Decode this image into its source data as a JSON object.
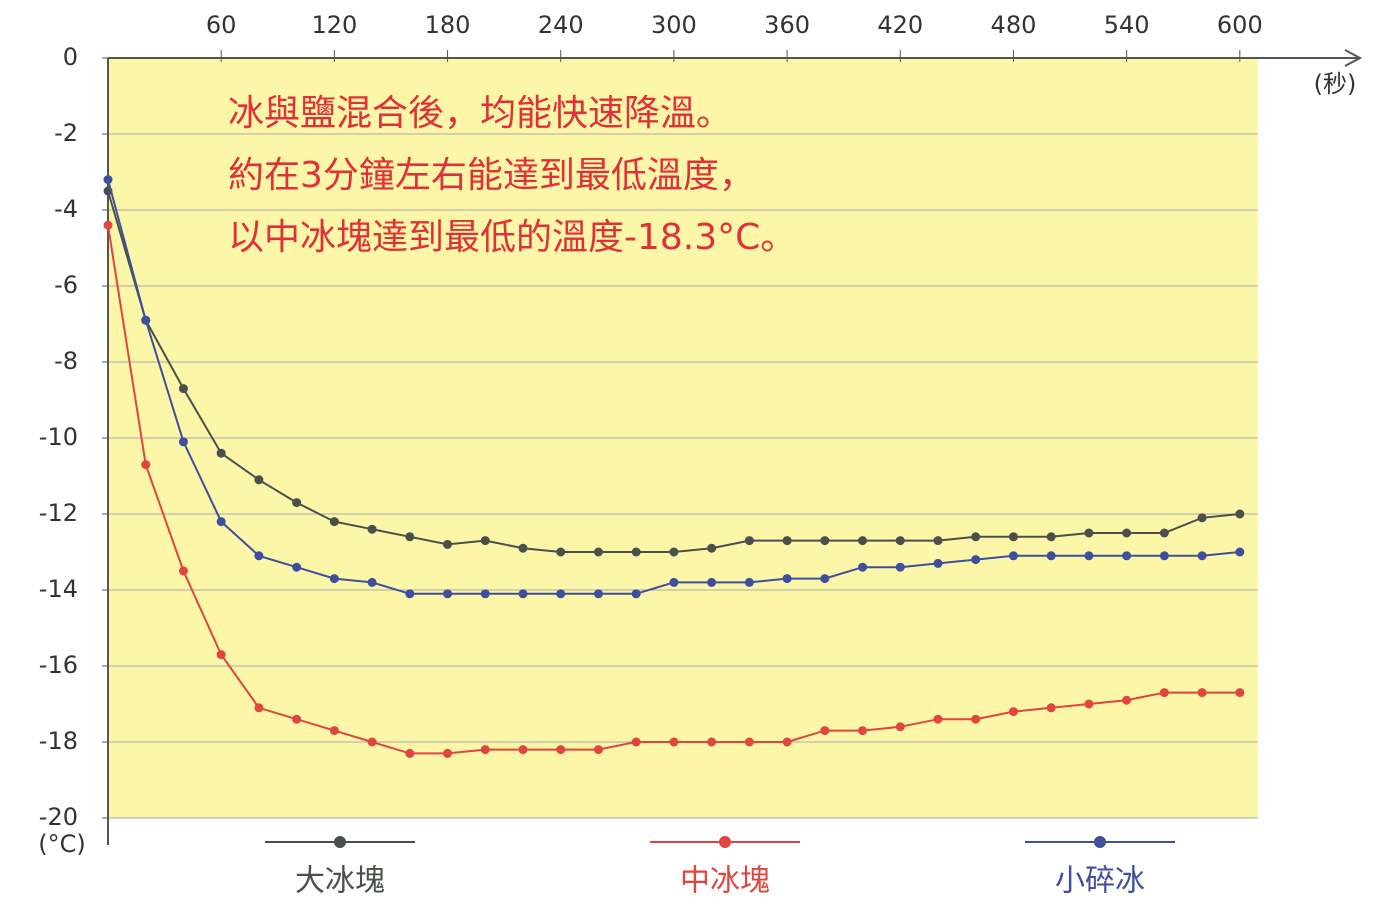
{
  "chart_data": {
    "type": "line",
    "annotations": [
      "冰與鹽混合後，均能快速降溫。",
      "約在3分鐘左右能達到最低溫度，",
      "以中冰塊達到最低的溫度-18.3°C。"
    ],
    "x_label": "(秒)",
    "y_label": "(°C)",
    "x": [
      0,
      20,
      40,
      60,
      80,
      100,
      120,
      140,
      160,
      180,
      200,
      220,
      240,
      260,
      280,
      300,
      320,
      340,
      360,
      380,
      400,
      420,
      440,
      460,
      480,
      500,
      520,
      540,
      560,
      580,
      600
    ],
    "series": [
      {
        "name": "大冰塊",
        "color": "#4a4f4a",
        "values": [
          -3.5,
          -6.9,
          -8.7,
          -10.4,
          -11.1,
          -11.7,
          -12.2,
          -12.4,
          -12.6,
          -12.8,
          -12.7,
          -12.9,
          -13.0,
          -13.0,
          -13.0,
          -13.0,
          -12.9,
          -12.7,
          -12.7,
          -12.7,
          -12.7,
          -12.7,
          -12.7,
          -12.6,
          -12.6,
          -12.6,
          -12.5,
          -12.5,
          -12.5,
          -12.1,
          -12.0
        ]
      },
      {
        "name": "中冰塊",
        "color": "#e0453f",
        "values": [
          -4.4,
          -10.7,
          -13.5,
          -15.7,
          -17.1,
          -17.4,
          -17.7,
          -18.0,
          -18.3,
          -18.3,
          -18.2,
          -18.2,
          -18.2,
          -18.2,
          -18.0,
          -18.0,
          -18.0,
          -18.0,
          -18.0,
          -17.7,
          -17.7,
          -17.6,
          -17.4,
          -17.4,
          -17.2,
          -17.1,
          -17.0,
          -16.9,
          -16.7,
          -16.7,
          -16.7
        ]
      },
      {
        "name": "小碎冰",
        "color": "#3e4f9e",
        "values": [
          -3.2,
          -6.9,
          -10.1,
          -12.2,
          -13.1,
          -13.4,
          -13.7,
          -13.8,
          -14.1,
          -14.1,
          -14.1,
          -14.1,
          -14.1,
          -14.1,
          -14.1,
          -13.8,
          -13.8,
          -13.8,
          -13.7,
          -13.7,
          -13.4,
          -13.4,
          -13.3,
          -13.2,
          -13.1,
          -13.1,
          -13.1,
          -13.1,
          -13.1,
          -13.1,
          -13.0
        ]
      }
    ],
    "xlim": [
      0,
      660
    ],
    "ylim": [
      -20,
      0
    ],
    "xticks": [
      60,
      120,
      180,
      240,
      300,
      360,
      420,
      480,
      540,
      600
    ],
    "yticks": [
      0,
      -2,
      -4,
      -6,
      -8,
      -10,
      -12,
      -14,
      -16,
      -18,
      -20
    ],
    "grid": true,
    "background": "#fbf6a8"
  }
}
